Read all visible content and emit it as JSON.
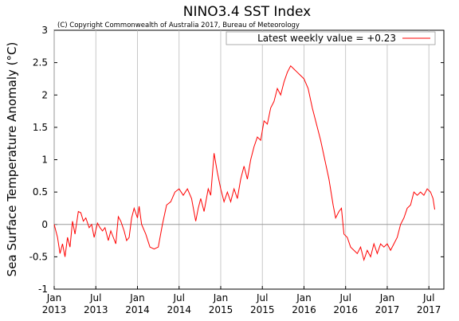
{
  "chart_data": {
    "type": "line",
    "title": "NINO3.4 SST Index",
    "subtitle": "(C) Copyright Commonwealth of Australia 2017, Bureau of Meteorology",
    "ylabel": "Sea Surface Temperature Anomaly (°C)",
    "x": [
      2013.0,
      2013.04,
      2013.07,
      2013.1,
      2013.13,
      2013.16,
      2013.19,
      2013.22,
      2013.25,
      2013.29,
      2013.32,
      2013.35,
      2013.38,
      2013.42,
      2013.45,
      2013.48,
      2013.52,
      2013.55,
      2013.58,
      2013.61,
      2013.65,
      2013.68,
      2013.71,
      2013.74,
      2013.77,
      2013.8,
      2013.84,
      2013.87,
      2013.9,
      2013.93,
      2013.96,
      2014.0,
      2014.02,
      2014.05,
      2014.1,
      2014.15,
      2014.2,
      2014.25,
      2014.3,
      2014.35,
      2014.4,
      2014.45,
      2014.5,
      2014.55,
      2014.6,
      2014.65,
      2014.7,
      2014.73,
      2014.76,
      2014.8,
      2014.85,
      2014.88,
      2014.92,
      2014.96,
      2015.0,
      2015.04,
      2015.08,
      2015.12,
      2015.16,
      2015.2,
      2015.24,
      2015.28,
      2015.32,
      2015.36,
      2015.4,
      2015.44,
      2015.48,
      2015.52,
      2015.56,
      2015.6,
      2015.64,
      2015.68,
      2015.72,
      2015.76,
      2015.8,
      2015.84,
      2015.88,
      2015.92,
      2015.96,
      2016.0,
      2016.05,
      2016.1,
      2016.15,
      2016.2,
      2016.25,
      2016.3,
      2016.35,
      2016.38,
      2016.42,
      2016.45,
      2016.48,
      2016.52,
      2016.56,
      2016.6,
      2016.64,
      2016.68,
      2016.72,
      2016.76,
      2016.8,
      2016.84,
      2016.88,
      2016.92,
      2016.96,
      2017.0,
      2017.04,
      2017.08,
      2017.12,
      2017.16,
      2017.2,
      2017.24,
      2017.28,
      2017.32,
      2017.36,
      2017.4,
      2017.44,
      2017.48,
      2017.52,
      2017.55,
      2017.57
    ],
    "series": [
      {
        "name": "Latest weekly value = +0.23",
        "color": "#ff0000",
        "values": [
          0,
          -0.2,
          -0.45,
          -0.3,
          -0.5,
          -0.2,
          -0.35,
          0.05,
          -0.15,
          0.2,
          0.18,
          0.05,
          0.1,
          -0.05,
          0,
          -0.2,
          0.02,
          -0.05,
          -0.1,
          -0.05,
          -0.25,
          -0.1,
          -0.2,
          -0.3,
          0.12,
          0.05,
          -0.1,
          -0.25,
          -0.2,
          0.1,
          0.25,
          0.1,
          0.28,
          0,
          -0.15,
          -0.35,
          -0.38,
          -0.35,
          0,
          0.3,
          0.35,
          0.5,
          0.55,
          0.45,
          0.55,
          0.4,
          0.05,
          0.25,
          0.4,
          0.2,
          0.55,
          0.45,
          1.1,
          0.8,
          0.55,
          0.35,
          0.5,
          0.35,
          0.55,
          0.4,
          0.7,
          0.9,
          0.7,
          1.0,
          1.2,
          1.35,
          1.3,
          1.6,
          1.55,
          1.8,
          1.9,
          2.1,
          2.0,
          2.2,
          2.35,
          2.45,
          2.4,
          2.35,
          2.3,
          2.25,
          2.1,
          1.8,
          1.55,
          1.3,
          1.0,
          0.7,
          0.3,
          0.1,
          0.2,
          0.25,
          -0.15,
          -0.2,
          -0.35,
          -0.4,
          -0.45,
          -0.35,
          -0.55,
          -0.4,
          -0.5,
          -0.3,
          -0.45,
          -0.3,
          -0.35,
          -0.3,
          -0.4,
          -0.3,
          -0.2,
          0,
          0.1,
          0.25,
          0.3,
          0.5,
          0.45,
          0.5,
          0.45,
          0.55,
          0.5,
          0.4,
          0.23
        ]
      }
    ],
    "xlim": [
      2013.0,
      2017.68
    ],
    "xticks": [
      {
        "value": 2013,
        "label": "Jan 2013"
      },
      {
        "value": 2013.5,
        "label": "Jul 2013"
      },
      {
        "value": 2014,
        "label": "Jan 2014"
      },
      {
        "value": 2014.5,
        "label": "Jul 2014"
      },
      {
        "value": 2015,
        "label": "Jan 2015"
      },
      {
        "value": 2015.5,
        "label": "Jul 2015"
      },
      {
        "value": 2016,
        "label": "Jan 2016"
      },
      {
        "value": 2016.5,
        "label": "Jul 2016"
      },
      {
        "value": 2017,
        "label": "Jan 2017"
      },
      {
        "value": 2017.5,
        "label": "Jul 2017"
      }
    ],
    "ylim": [
      -1,
      3
    ],
    "yticks": [
      -1,
      -0.5,
      0,
      0.5,
      1,
      1.5,
      2,
      2.5,
      3
    ],
    "grid": "x",
    "zero_line": true,
    "legend": "upper right"
  }
}
